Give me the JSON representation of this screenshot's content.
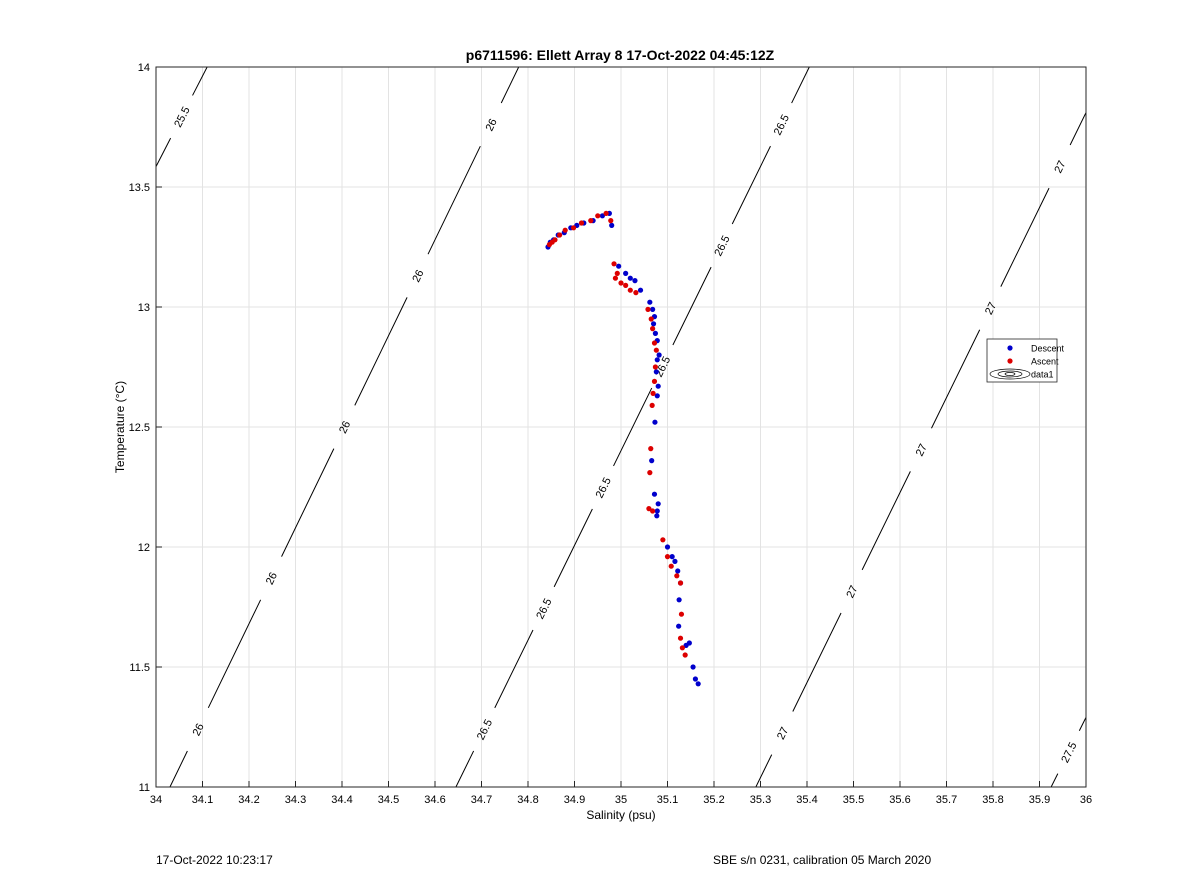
{
  "chart_data": {
    "type": "scatter",
    "title": "p6711596: Ellett Array 8 17-Oct-2022 04:45:12Z",
    "xlabel": "Salinity (psu)",
    "ylabel": "Temperature (°C)",
    "xlim": [
      34,
      36
    ],
    "ylim": [
      11,
      14
    ],
    "xticks": [
      "34",
      "34.1",
      "34.2",
      "34.3",
      "34.4",
      "34.5",
      "34.6",
      "34.7",
      "34.8",
      "34.9",
      "35",
      "35.1",
      "35.2",
      "35.3",
      "35.4",
      "35.5",
      "35.6",
      "35.7",
      "35.8",
      "35.9",
      "36"
    ],
    "yticks": [
      "11",
      "11.5",
      "12",
      "12.5",
      "13",
      "13.5",
      "14"
    ],
    "grid": true,
    "legend_position": "right",
    "legend": [
      {
        "label": "Descent",
        "marker": "dot",
        "color": "#0000cc"
      },
      {
        "label": "Ascent",
        "marker": "dot",
        "color": "#dd0000"
      },
      {
        "label": "data1",
        "marker": "contour"
      }
    ],
    "series": [
      {
        "name": "Descent",
        "color": "#0000cc",
        "points": [
          [
            34.843,
            13.25
          ],
          [
            34.848,
            13.27
          ],
          [
            34.855,
            13.28
          ],
          [
            34.865,
            13.3
          ],
          [
            34.878,
            13.31
          ],
          [
            34.892,
            13.33
          ],
          [
            34.905,
            13.34
          ],
          [
            34.92,
            13.35
          ],
          [
            34.94,
            13.36
          ],
          [
            34.96,
            13.38
          ],
          [
            34.975,
            13.39
          ],
          [
            34.98,
            13.34
          ],
          [
            34.995,
            13.17
          ],
          [
            35.01,
            13.14
          ],
          [
            35.02,
            13.12
          ],
          [
            35.03,
            13.11
          ],
          [
            35.042,
            13.07
          ],
          [
            35.062,
            13.02
          ],
          [
            35.068,
            12.99
          ],
          [
            35.072,
            12.96
          ],
          [
            35.07,
            12.93
          ],
          [
            35.074,
            12.89
          ],
          [
            35.078,
            12.86
          ],
          [
            35.082,
            12.8
          ],
          [
            35.078,
            12.78
          ],
          [
            35.076,
            12.73
          ],
          [
            35.08,
            12.67
          ],
          [
            35.078,
            12.63
          ],
          [
            35.073,
            12.52
          ],
          [
            35.066,
            12.36
          ],
          [
            35.072,
            12.22
          ],
          [
            35.08,
            12.18
          ],
          [
            35.078,
            12.15
          ],
          [
            35.077,
            12.13
          ],
          [
            35.1,
            12.0
          ],
          [
            35.11,
            11.96
          ],
          [
            35.116,
            11.94
          ],
          [
            35.122,
            11.9
          ],
          [
            35.128,
            11.85
          ],
          [
            35.125,
            11.78
          ],
          [
            35.124,
            11.67
          ],
          [
            35.14,
            11.59
          ],
          [
            35.147,
            11.6
          ],
          [
            35.155,
            11.5
          ],
          [
            35.16,
            11.45
          ],
          [
            35.166,
            11.43
          ]
        ]
      },
      {
        "name": "Ascent",
        "color": "#dd0000",
        "points": [
          [
            34.846,
            13.26
          ],
          [
            34.852,
            13.27
          ],
          [
            34.858,
            13.28
          ],
          [
            34.868,
            13.3
          ],
          [
            34.88,
            13.32
          ],
          [
            34.898,
            13.33
          ],
          [
            34.915,
            13.35
          ],
          [
            34.935,
            13.36
          ],
          [
            34.95,
            13.38
          ],
          [
            34.968,
            13.39
          ],
          [
            34.978,
            13.36
          ],
          [
            34.985,
            13.18
          ],
          [
            34.992,
            13.14
          ],
          [
            34.988,
            13.12
          ],
          [
            35.0,
            13.1
          ],
          [
            35.01,
            13.09
          ],
          [
            35.02,
            13.07
          ],
          [
            35.032,
            13.06
          ],
          [
            35.058,
            12.99
          ],
          [
            35.065,
            12.95
          ],
          [
            35.068,
            12.91
          ],
          [
            35.072,
            12.85
          ],
          [
            35.076,
            12.82
          ],
          [
            35.074,
            12.75
          ],
          [
            35.072,
            12.69
          ],
          [
            35.069,
            12.64
          ],
          [
            35.067,
            12.59
          ],
          [
            35.064,
            12.41
          ],
          [
            35.062,
            12.31
          ],
          [
            35.06,
            12.16
          ],
          [
            35.068,
            12.15
          ],
          [
            35.09,
            12.03
          ],
          [
            35.1,
            11.96
          ],
          [
            35.108,
            11.92
          ],
          [
            35.12,
            11.88
          ],
          [
            35.128,
            11.85
          ],
          [
            35.13,
            11.72
          ],
          [
            35.128,
            11.62
          ],
          [
            35.132,
            11.58
          ],
          [
            35.138,
            11.55
          ]
        ]
      }
    ],
    "contours": [
      {
        "sigma": 25.5,
        "points": [
          [
            34.0,
            13.585
          ],
          [
            34.11,
            14.0
          ]
        ],
        "labels": [
          "25.5"
        ]
      },
      {
        "sigma": 26,
        "points": [
          [
            34.03,
            11.0
          ],
          [
            34.78,
            14.0
          ]
        ],
        "labels": [
          "26",
          "26",
          "26",
          "26",
          "26"
        ]
      },
      {
        "sigma": 26.5,
        "points": [
          [
            34.645,
            11.0
          ],
          [
            35.405,
            14.0
          ]
        ],
        "labels": [
          "26.5",
          "26.5",
          "26.5",
          "26.5",
          "26.5",
          "26.5"
        ]
      },
      {
        "sigma": 27,
        "points": [
          [
            35.29,
            11.0
          ],
          [
            36.0,
            13.81
          ]
        ],
        "labels": [
          "27",
          "27",
          "27",
          "27",
          "27"
        ]
      },
      {
        "sigma": 27.5,
        "points": [
          [
            35.925,
            11.0
          ],
          [
            36.0,
            11.29
          ]
        ],
        "labels": [
          "27.5"
        ]
      }
    ]
  },
  "footer": {
    "left": "17-Oct-2022 10:23:17",
    "right": "SBE s/n 0231, calibration 05 March 2020"
  }
}
